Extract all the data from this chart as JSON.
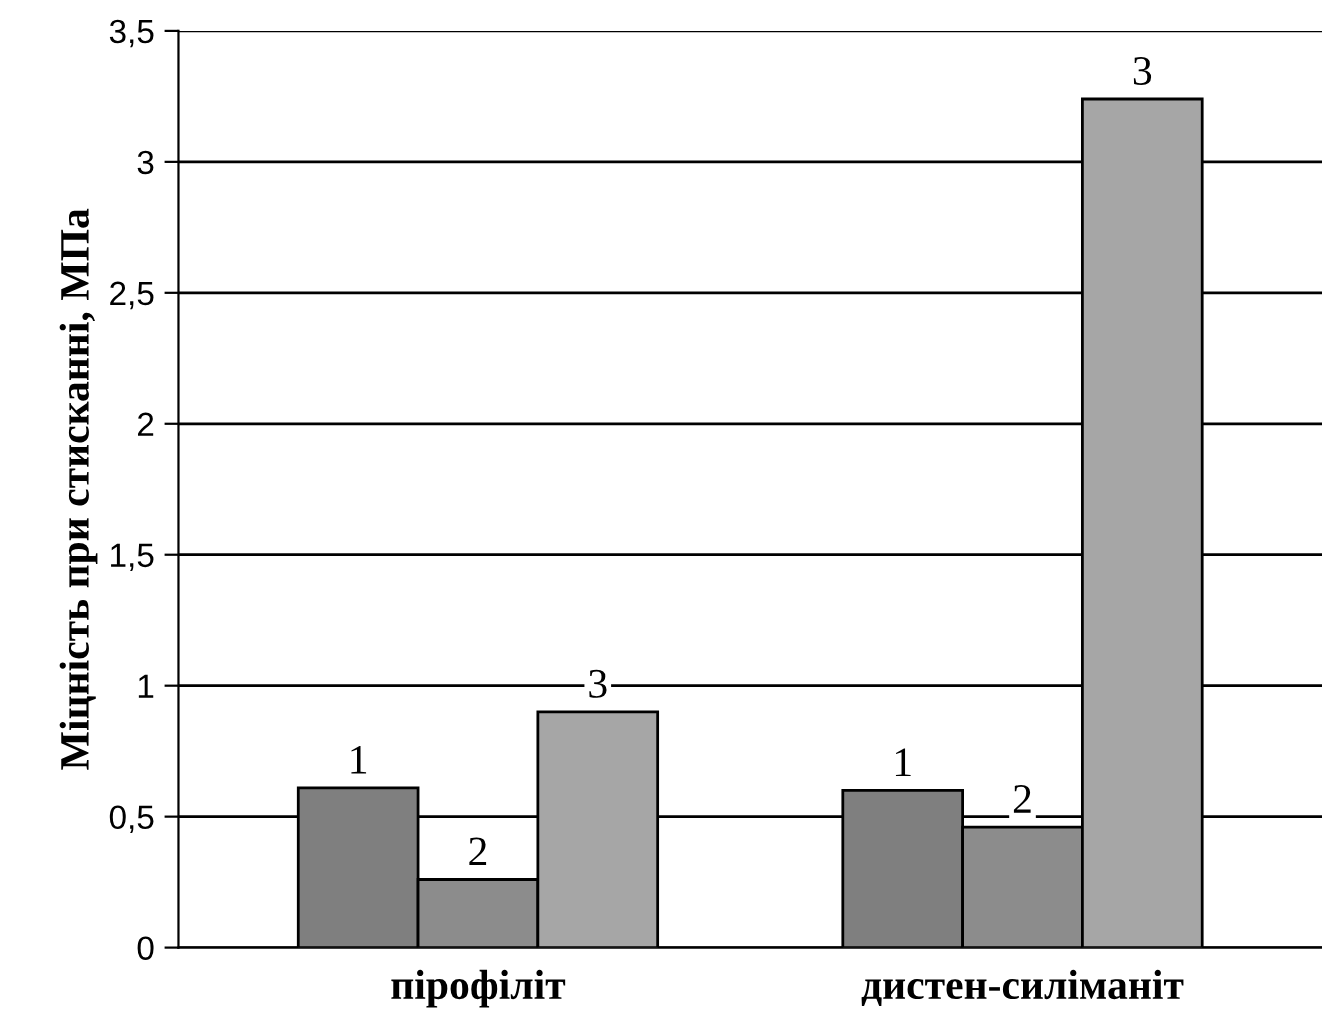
{
  "chart_data": {
    "type": "bar",
    "ylabel": "Міцність при стисканні, МПа",
    "categories": [
      "пірофіліт",
      "дистен-силіманіт"
    ],
    "series": [
      {
        "name": "1",
        "color": "#7f7f7f",
        "values": [
          0.61,
          0.6
        ]
      },
      {
        "name": "2",
        "color": "#8c8c8c",
        "values": [
          0.26,
          0.46
        ]
      },
      {
        "name": "3",
        "color": "#a6a6a6",
        "values": [
          0.9,
          3.24
        ]
      }
    ],
    "ylim": [
      0,
      3.5
    ],
    "yticks": [
      0,
      {
        "value": 0.5,
        "label": "0,5"
      },
      1,
      {
        "value": 1.5,
        "label": "1,5"
      },
      2,
      {
        "value": 2.5,
        "label": "2,5"
      },
      3,
      {
        "value": 3.5,
        "label": "3,5"
      }
    ],
    "grid": "y",
    "legend": false
  }
}
